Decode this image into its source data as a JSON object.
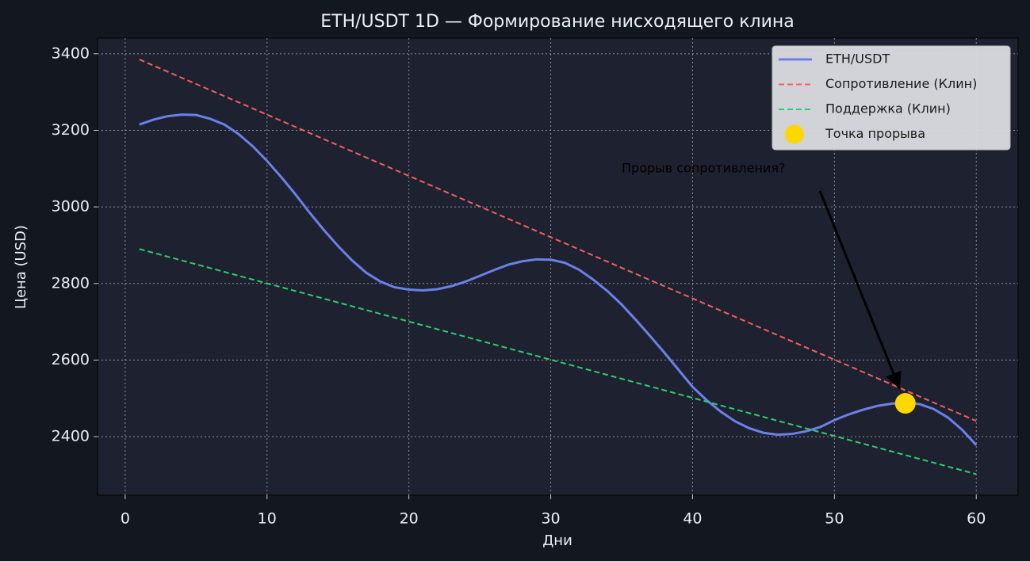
{
  "chart_data": {
    "type": "line",
    "title": "ETH/USDT 1D — Формирование нисходящего клина",
    "x_label": "Дни",
    "y_label": "Цена (USD)",
    "xlim": [
      -1.95,
      62.95
    ],
    "ylim": [
      2247,
      3441
    ],
    "xticks": [
      0,
      10,
      20,
      30,
      40,
      50,
      60
    ],
    "yticks": [
      2400,
      2600,
      2800,
      3000,
      3200,
      3400
    ],
    "grid": true,
    "legend": "upper right",
    "series": [
      {
        "name": "ETH/USDT",
        "color": "#6b80e8",
        "style": "solid",
        "x": [
          1,
          2,
          3,
          4,
          5,
          6,
          7,
          8,
          9,
          10,
          11,
          12,
          13,
          14,
          15,
          16,
          17,
          18,
          19,
          20,
          21,
          22,
          23,
          24,
          25,
          26,
          27,
          28,
          29,
          30,
          31,
          32,
          33,
          34,
          35,
          36,
          37,
          38,
          39,
          40,
          41,
          42,
          43,
          44,
          45,
          46,
          47,
          48,
          49,
          50,
          51,
          52,
          53,
          54,
          55,
          56,
          57,
          58,
          59,
          60
        ],
        "values": [
          3215,
          3228,
          3237,
          3241,
          3240,
          3230,
          3215,
          3190,
          3158,
          3120,
          3078,
          3033,
          2985,
          2940,
          2898,
          2860,
          2828,
          2805,
          2790,
          2784,
          2782,
          2785,
          2793,
          2805,
          2820,
          2835,
          2849,
          2858,
          2863,
          2862,
          2854,
          2836,
          2810,
          2780,
          2745,
          2705,
          2663,
          2620,
          2575,
          2530,
          2495,
          2465,
          2440,
          2422,
          2410,
          2405,
          2407,
          2414,
          2425,
          2443,
          2458,
          2470,
          2480,
          2486,
          2489,
          2485,
          2472,
          2450,
          2418,
          2378
        ]
      },
      {
        "name": "Сопротивление (Клин)",
        "color": "#f06060",
        "style": "dashed",
        "x": [
          1,
          60
        ],
        "values": [
          3385,
          2441
        ]
      },
      {
        "name": "Поддержка (Клин)",
        "color": "#2ecc71",
        "style": "dashed",
        "x": [
          1,
          60
        ],
        "values": [
          2890,
          2302
        ]
      },
      {
        "name": "Точка прорыва",
        "color": "#ffd700",
        "style": "point",
        "x": [
          55
        ],
        "values": [
          2487
        ]
      }
    ],
    "annotation": {
      "text": "Прорыв сопротивления?",
      "xy": [
        55,
        2487
      ],
      "xytext": [
        35,
        3100
      ]
    }
  }
}
